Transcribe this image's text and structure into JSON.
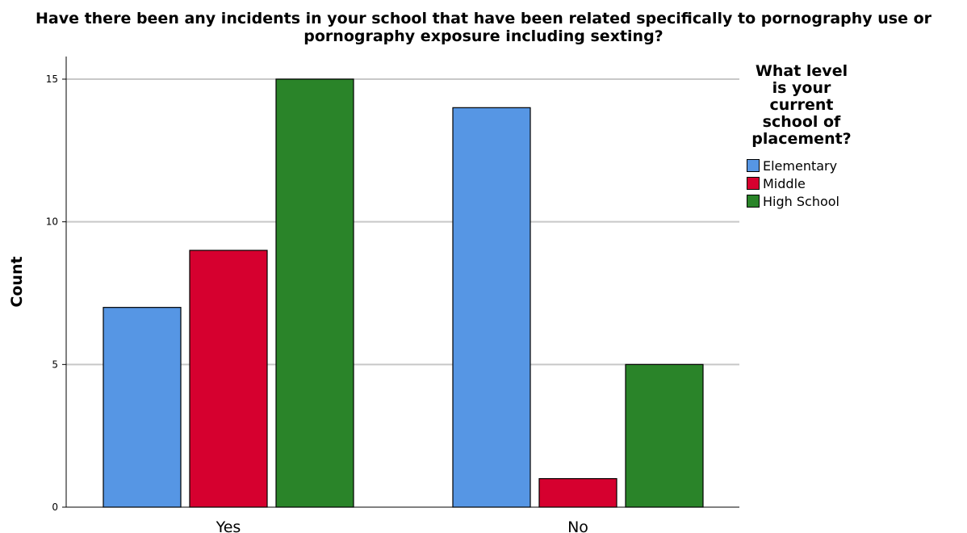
{
  "title_lines": [
    "Have there been any incidents in your school that have been related specifically to pornography use or",
    "pornography exposure including sexting?"
  ],
  "legend": {
    "title_lines": [
      "What level",
      "is your",
      "current",
      "school of",
      "placement?"
    ],
    "placement": "right"
  },
  "colors": {
    "Elementary": "#5696e4",
    "Middle": "#d6002f",
    "High School": "#2a8429",
    "gridline": "#c8c8c8",
    "axis": "#000000"
  },
  "chart_data": {
    "type": "bar",
    "categories": [
      "Yes",
      "No"
    ],
    "series": [
      {
        "name": "Elementary",
        "values": [
          7,
          14
        ]
      },
      {
        "name": "Middle",
        "values": [
          9,
          1
        ]
      },
      {
        "name": "High School",
        "values": [
          15,
          5
        ]
      }
    ],
    "xlabel": "",
    "ylabel": "Count",
    "ylim": [
      0,
      15
    ],
    "yticks": [
      0,
      5,
      10,
      15
    ],
    "grid": true
  }
}
